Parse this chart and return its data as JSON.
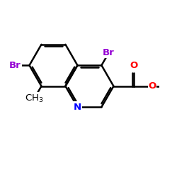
{
  "bg_color": "#ffffff",
  "bond_color": "#000000",
  "bond_width": 1.8,
  "N_color": "#0000ff",
  "Br_color": "#9400d3",
  "O_color": "#ff0000",
  "C_color": "#000000",
  "font_size": 9.5,
  "figsize": [
    2.5,
    2.5
  ],
  "dpi": 100,
  "xlim": [
    -2.5,
    3.2
  ],
  "ylim": [
    -3.0,
    1.8
  ]
}
